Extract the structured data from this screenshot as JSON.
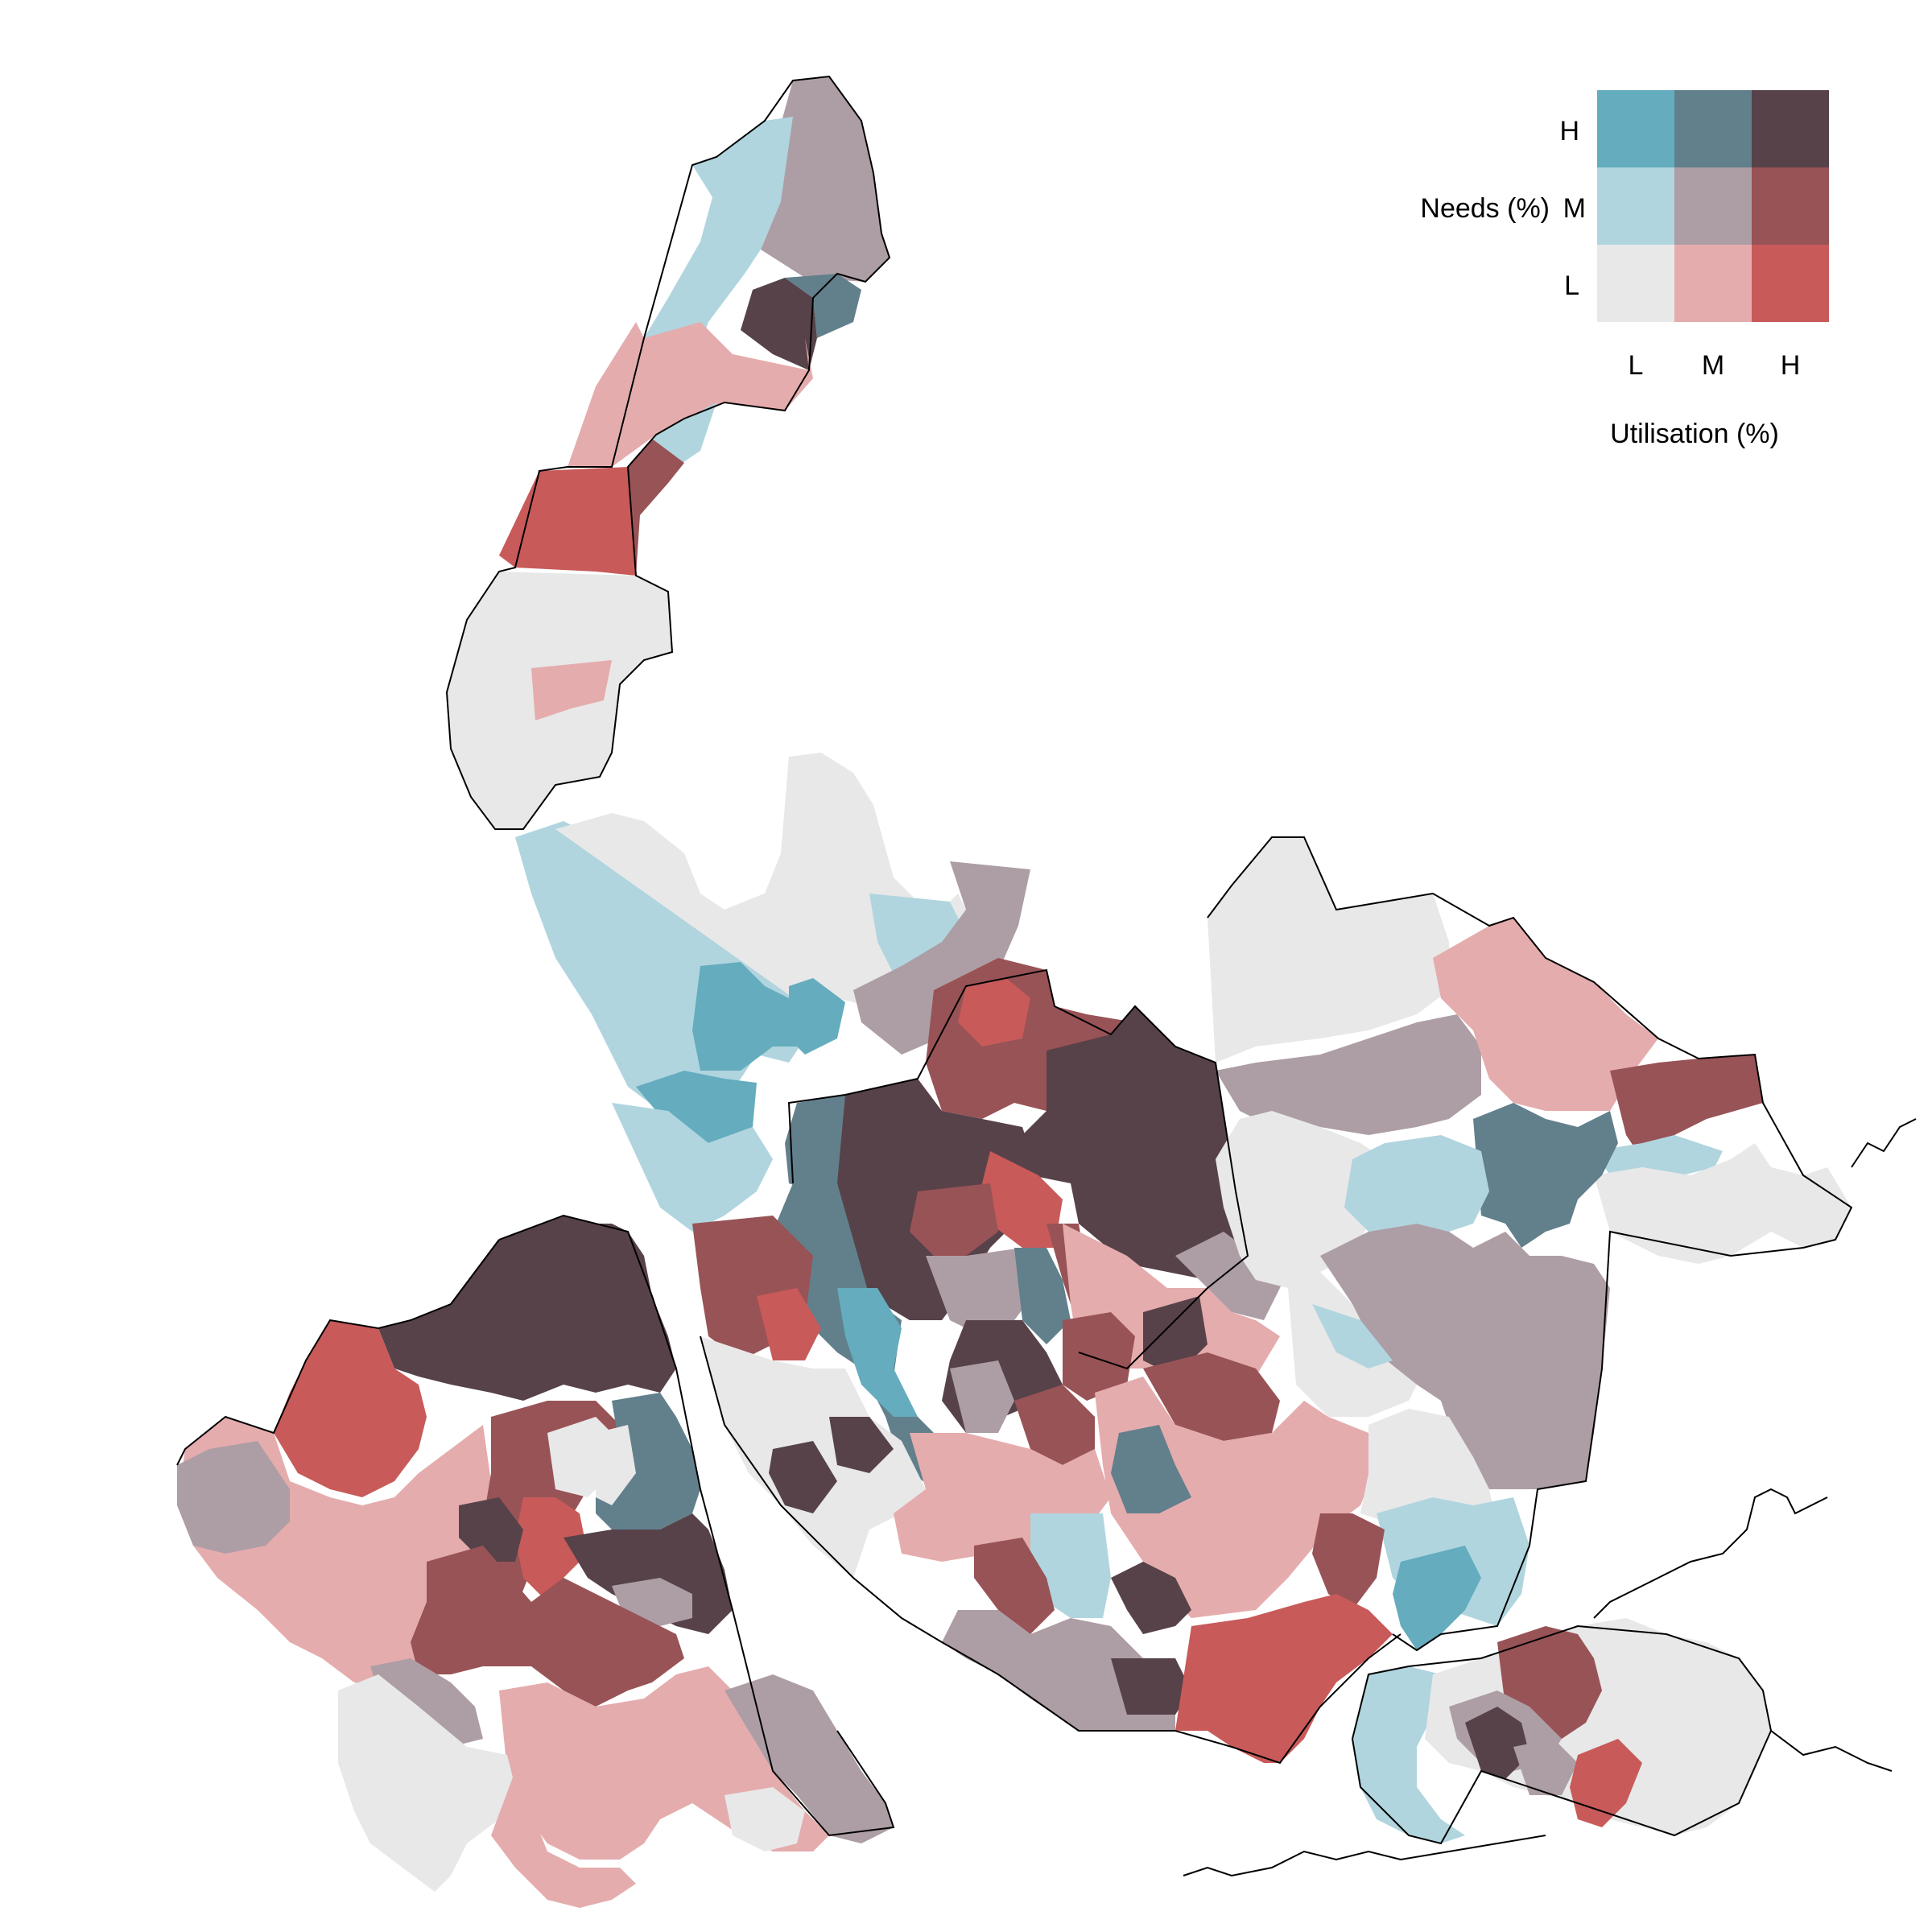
{
  "palette": {
    "LL": "#e8e8e8",
    "ML": "#e5acad",
    "HL": "#c85a5a",
    "LM": "#b0d5df",
    "MM": "#ad9ea5",
    "HM": "#985356",
    "LH": "#64acbe",
    "MH": "#627f8c",
    "HH": "#574249"
  },
  "legend": {
    "y_title": "Needs (%)",
    "x_title": "Utilisation (%)",
    "y_levels": [
      "H",
      "M",
      "L"
    ],
    "x_levels": [
      "L",
      "M",
      "H"
    ]
  },
  "map": {
    "region_classes_visible": [
      "LL",
      "ML",
      "HL",
      "LM",
      "MM",
      "HM",
      "LH",
      "MH",
      "HH"
    ]
  }
}
